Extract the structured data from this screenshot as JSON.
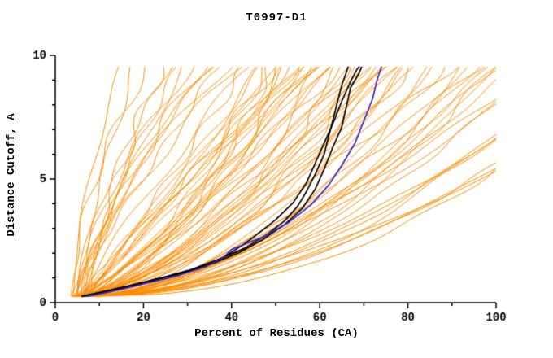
{
  "chart_data": {
    "type": "line",
    "title": "T0997-D1",
    "xlabel": "Percent of Residues (CA)",
    "ylabel": "Distance Cutoff, A",
    "xlim": [
      0,
      100
    ],
    "ylim": [
      0,
      10
    ],
    "xticks": [
      0,
      20,
      40,
      60,
      80,
      100
    ],
    "xminor_step": 10,
    "yticks": [
      0,
      5,
      10
    ],
    "yminor_step": 1,
    "grid": false,
    "legend": "none",
    "y_start": 0.25,
    "y_end": 9.55,
    "colors": {
      "model": "#ff8c00",
      "highlight": "#000000",
      "selected": "#3322cc",
      "axis": "#000000",
      "background": "#ffffff"
    },
    "model_curves": [
      [
        4,
        15,
        1.6
      ],
      [
        5,
        18,
        1.3
      ],
      [
        4,
        21,
        1.8
      ],
      [
        6,
        24,
        1.2
      ],
      [
        5,
        26,
        1.5
      ],
      [
        4,
        29,
        1.1
      ],
      [
        6,
        31,
        1.7
      ],
      [
        5,
        33,
        1.25
      ],
      [
        7,
        35,
        1.45
      ],
      [
        4,
        37,
        1.1
      ],
      [
        6,
        39,
        1.6
      ],
      [
        5,
        41,
        1.3
      ],
      [
        8,
        36,
        1.9
      ],
      [
        7,
        28,
        1.4
      ],
      [
        5,
        43,
        0.9
      ],
      [
        6,
        44,
        1.15
      ],
      [
        4,
        46,
        0.75
      ],
      [
        7,
        47,
        1.0
      ],
      [
        5,
        48,
        0.65
      ],
      [
        6,
        50,
        0.9
      ],
      [
        8,
        51,
        1.2
      ],
      [
        4,
        52,
        0.7
      ],
      [
        6,
        53,
        0.95
      ],
      [
        5,
        54,
        0.6
      ],
      [
        7,
        55,
        1.05
      ],
      [
        6,
        56,
        0.8
      ],
      [
        4,
        57,
        0.65
      ],
      [
        8,
        58,
        0.9
      ],
      [
        5,
        59,
        1.1
      ],
      [
        6,
        60,
        0.7
      ],
      [
        7,
        61,
        0.85
      ],
      [
        5,
        62,
        0.6
      ],
      [
        9,
        57,
        1.3
      ],
      [
        10,
        52,
        0.75
      ],
      [
        6,
        49,
        0.55
      ],
      [
        5,
        61,
        0.95
      ],
      [
        5,
        63,
        0.8
      ],
      [
        6,
        64,
        0.6
      ],
      [
        7,
        65,
        0.9
      ],
      [
        4,
        66,
        0.55
      ],
      [
        6,
        67,
        0.75
      ],
      [
        8,
        68,
        0.65
      ],
      [
        5,
        69,
        0.85
      ],
      [
        6,
        70,
        0.5
      ],
      [
        7,
        71,
        0.7
      ],
      [
        5,
        72,
        0.6
      ],
      [
        9,
        73,
        0.8
      ],
      [
        6,
        74,
        0.55
      ],
      [
        4,
        75,
        0.7
      ],
      [
        7,
        76,
        0.9
      ],
      [
        5,
        77,
        0.6
      ],
      [
        8,
        78,
        0.75
      ],
      [
        6,
        79,
        0.5
      ],
      [
        5,
        80,
        0.65
      ],
      [
        6,
        81,
        0.6
      ],
      [
        5,
        83,
        0.75
      ],
      [
        7,
        85,
        0.5
      ],
      [
        6,
        86,
        0.65
      ],
      [
        8,
        88,
        0.55
      ],
      [
        5,
        90,
        0.7
      ],
      [
        6,
        92,
        0.45
      ],
      [
        7,
        93,
        0.6
      ],
      [
        5,
        95,
        0.5
      ],
      [
        9,
        96,
        0.65
      ],
      [
        6,
        98,
        0.55
      ],
      [
        5,
        99,
        0.45
      ],
      [
        7,
        100,
        0.6
      ],
      [
        6,
        100,
        0.5
      ],
      [
        6,
        104,
        0.6
      ],
      [
        5,
        108,
        0.5
      ],
      [
        7,
        112,
        0.65
      ],
      [
        6,
        116,
        0.45
      ],
      [
        8,
        120,
        0.55
      ],
      [
        5,
        125,
        0.6
      ],
      [
        6,
        130,
        0.5
      ],
      [
        7,
        136,
        0.55
      ],
      [
        5,
        142,
        0.6
      ],
      [
        9,
        110,
        0.7
      ],
      [
        6,
        118,
        0.5
      ],
      [
        8,
        128,
        0.45
      ]
    ],
    "highlight_curves": [
      {
        "points": [
          [
            6,
            0.25
          ],
          [
            11,
            0.45
          ],
          [
            17,
            0.7
          ],
          [
            24,
            1.0
          ],
          [
            31,
            1.35
          ],
          [
            37,
            1.75
          ],
          [
            43,
            2.2
          ],
          [
            48,
            2.75
          ],
          [
            52,
            3.3
          ],
          [
            55,
            3.9
          ],
          [
            57,
            4.5
          ],
          [
            59,
            5.2
          ],
          [
            61,
            6.0
          ],
          [
            62,
            6.7
          ],
          [
            63,
            7.4
          ],
          [
            64,
            8.1
          ],
          [
            65,
            8.8
          ],
          [
            66,
            9.3
          ],
          [
            66.5,
            9.55
          ]
        ]
      },
      {
        "points": [
          [
            6,
            0.25
          ],
          [
            13,
            0.5
          ],
          [
            21,
            0.85
          ],
          [
            29,
            1.2
          ],
          [
            36,
            1.6
          ],
          [
            42,
            2.05
          ],
          [
            47,
            2.55
          ],
          [
            52,
            3.15
          ],
          [
            56,
            3.8
          ],
          [
            59,
            4.6
          ],
          [
            61,
            5.4
          ],
          [
            63,
            6.3
          ],
          [
            65,
            7.1
          ],
          [
            66,
            7.9
          ],
          [
            67,
            8.7
          ],
          [
            69,
            9.3
          ],
          [
            69.5,
            9.55
          ]
        ]
      },
      {
        "points": [
          [
            6,
            0.25
          ],
          [
            15,
            0.6
          ],
          [
            23,
            0.95
          ],
          [
            31,
            1.3
          ],
          [
            37,
            1.7
          ],
          [
            41,
            2.15
          ],
          [
            45,
            2.65
          ],
          [
            50,
            3.35
          ],
          [
            54,
            4.05
          ],
          [
            57,
            4.85
          ],
          [
            59,
            5.65
          ],
          [
            61,
            6.45
          ],
          [
            63,
            7.25
          ],
          [
            65,
            8.15
          ],
          [
            67,
            8.95
          ],
          [
            68.5,
            9.45
          ],
          [
            69,
            9.55
          ]
        ]
      }
    ],
    "selected_curve": {
      "points": [
        [
          7,
          0.25
        ],
        [
          14,
          0.5
        ],
        [
          21,
          0.8
        ],
        [
          28,
          1.1
        ],
        [
          34,
          1.45
        ],
        [
          38,
          1.8
        ],
        [
          40,
          2.15
        ],
        [
          47,
          2.65
        ],
        [
          53,
          3.25
        ],
        [
          58,
          3.95
        ],
        [
          62,
          4.75
        ],
        [
          65,
          5.55
        ],
        [
          68,
          6.45
        ],
        [
          70,
          7.35
        ],
        [
          72,
          8.25
        ],
        [
          73,
          9.0
        ],
        [
          74,
          9.55
        ]
      ]
    }
  }
}
